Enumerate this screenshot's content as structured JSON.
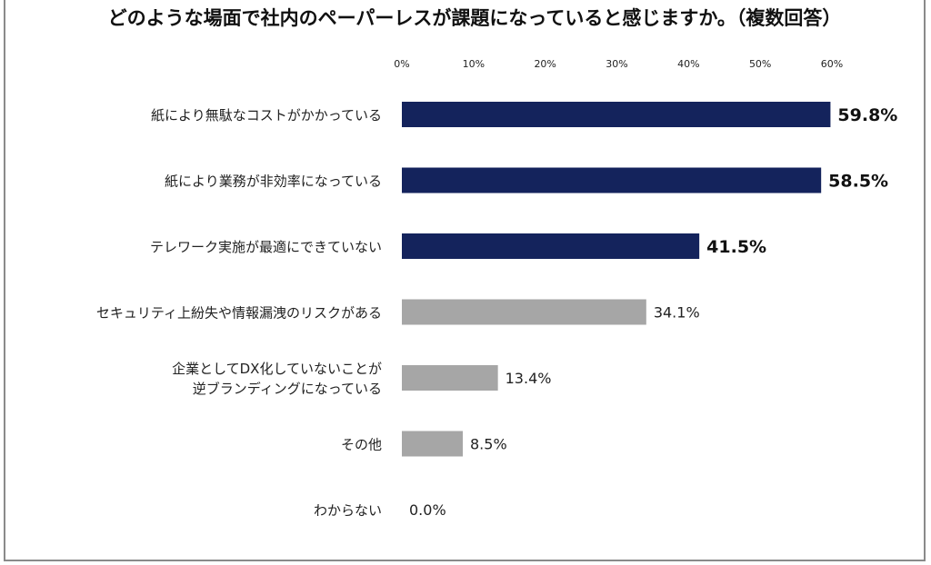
{
  "header": {
    "title": "どのような場面で社内のペーパーレスが課題になっていると感じますか。（複数回答）"
  },
  "colors": {
    "highlight": "#14235c",
    "normal": "#a6a6a6",
    "text": "#222222"
  },
  "chart_data": {
    "type": "bar",
    "orientation": "horizontal",
    "title": "どのような場面で社内のペーパーレスが課題になっていると感じますか。（複数回答）",
    "xlim": [
      0,
      60
    ],
    "x_ticks": [
      "0%",
      "10%",
      "20%",
      "30%",
      "40%",
      "50%",
      "60%"
    ],
    "tick_values": [
      0,
      10,
      20,
      30,
      40,
      50,
      60
    ],
    "grid": false,
    "legend": "none",
    "categories": [
      [
        "紙により無駄なコストがかかっている"
      ],
      [
        "紙により業務が非効率になっている"
      ],
      [
        "テレワーク実施が最適にできていない"
      ],
      [
        "セキュリティ上紛失や情報漏洩のリスクがある"
      ],
      [
        "企業としてDX化していないことが",
        "逆ブランディングになっている"
      ],
      [
        "その他"
      ],
      [
        "わからない"
      ]
    ],
    "values": [
      59.8,
      58.5,
      41.5,
      34.1,
      13.4,
      8.5,
      0.0
    ],
    "value_labels": [
      "59.8%",
      "58.5%",
      "41.5%",
      "34.1%",
      "13.4%",
      "8.5%",
      "0.0%"
    ],
    "highlighted": [
      true,
      true,
      true,
      false,
      false,
      false,
      false
    ]
  }
}
